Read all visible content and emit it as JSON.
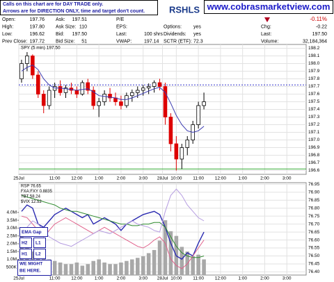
{
  "header": {
    "notice": [
      "Calls on this chart are for DAY TRADE only.",
      "Arrows are for DIRECTION ONLY, time and target don't count."
    ],
    "symbol": "RSHLS",
    "site": "www.cobrasmarketview.com",
    "change_pct": "-0.11%",
    "rows": [
      [
        [
          "Open:",
          "197.76"
        ],
        [
          "Ask:",
          "197.51"
        ],
        [
          "P/E"
        ]
      ],
      [
        [
          "High:",
          "197.80"
        ],
        [
          "Ask Size:",
          "110"
        ],
        [
          "EPS:"
        ],
        [
          "Options:",
          "yes"
        ]
      ],
      [
        [
          "Low:",
          "196.62"
        ],
        [
          "Bid:",
          "197.50"
        ],
        [
          "Last:",
          "100 shrs"
        ],
        [
          "Dividends:",
          "yes"
        ]
      ],
      [
        [
          "Prev Close:",
          "197.72"
        ],
        [
          "Bid Size:",
          "51"
        ],
        [
          "VWAP:",
          "197.14"
        ],
        [
          "SCTR (ETF):",
          "72.3"
        ]
      ]
    ],
    "stats": [
      [
        "Chg:",
        "-0.22"
      ],
      [
        "Last:",
        "197.50"
      ],
      [
        "Volume:",
        "32,184,364"
      ]
    ]
  },
  "chart_data": [
    {
      "type": "candlestick",
      "legend": "SPY (5 min) 197.50",
      "x": [
        0,
        1,
        2,
        3,
        4,
        5,
        6,
        7,
        8,
        9,
        10,
        11,
        12,
        13,
        14,
        15,
        16,
        17,
        18,
        19,
        20,
        21,
        22,
        23,
        24,
        25,
        26,
        27,
        28,
        29,
        30,
        31,
        32,
        33
      ],
      "open": [
        197.8,
        198.0,
        198.1,
        197.85,
        197.6,
        197.45,
        197.65,
        197.7,
        197.62,
        197.68,
        197.65,
        197.6,
        197.75,
        197.65,
        197.45,
        197.5,
        197.6,
        197.55,
        197.5,
        197.45,
        197.58,
        197.62,
        197.65,
        197.68,
        197.7,
        197.75,
        197.7,
        197.3,
        196.95,
        196.75,
        196.9,
        197.0,
        197.2,
        197.45
      ],
      "high": [
        198.05,
        198.15,
        198.12,
        197.9,
        197.65,
        197.7,
        197.75,
        197.78,
        197.72,
        197.75,
        197.7,
        197.78,
        197.8,
        197.7,
        197.55,
        197.65,
        197.68,
        197.62,
        197.58,
        197.62,
        197.66,
        197.7,
        197.72,
        197.74,
        197.78,
        197.8,
        197.75,
        197.35,
        197.05,
        196.95,
        197.05,
        197.25,
        197.5,
        197.62
      ],
      "low": [
        197.75,
        197.9,
        197.8,
        197.55,
        197.35,
        197.4,
        197.55,
        197.58,
        197.55,
        197.6,
        197.55,
        197.58,
        197.6,
        197.4,
        197.3,
        197.45,
        197.5,
        197.45,
        197.4,
        197.42,
        197.5,
        197.55,
        197.58,
        197.6,
        197.62,
        197.65,
        197.2,
        196.85,
        196.6,
        196.62,
        196.8,
        196.95,
        197.15,
        197.4
      ],
      "close": [
        198.0,
        198.1,
        197.85,
        197.6,
        197.45,
        197.65,
        197.7,
        197.62,
        197.68,
        197.65,
        197.6,
        197.75,
        197.65,
        197.45,
        197.5,
        197.6,
        197.55,
        197.5,
        197.45,
        197.58,
        197.62,
        197.65,
        197.68,
        197.7,
        197.75,
        197.7,
        197.3,
        196.95,
        196.75,
        196.9,
        197.0,
        197.2,
        197.45,
        197.5
      ],
      "up_color": "#000000",
      "down_color": "#dd0000",
      "ma": {
        "color": "#3a3ab0",
        "values": [
          197.9,
          197.95,
          197.98,
          197.92,
          197.8,
          197.72,
          197.68,
          197.68,
          197.67,
          197.66,
          197.65,
          197.66,
          197.67,
          197.63,
          197.58,
          197.57,
          197.56,
          197.55,
          197.53,
          197.53,
          197.55,
          197.58,
          197.61,
          197.64,
          197.67,
          197.69,
          197.62,
          197.48,
          197.32,
          197.2,
          197.12,
          197.1,
          197.12,
          197.18
        ]
      },
      "ref_lines": [
        {
          "value": 197.72,
          "color": "#3333cc",
          "dash": true
        },
        {
          "value": 196.62,
          "color": "#33aa33",
          "dash": false
        }
      ],
      "xlim": [
        -0.5,
        51.5
      ],
      "xticks": [
        {
          "value": -0.5,
          "label": "25Jul"
        },
        {
          "value": 6,
          "label": "11:00"
        },
        {
          "value": 10,
          "label": "12:00"
        },
        {
          "value": 14,
          "label": "1:00"
        },
        {
          "value": 18,
          "label": "2:00"
        },
        {
          "value": 22,
          "label": "3:00"
        },
        {
          "value": 25.5,
          "label": "28Jul"
        },
        {
          "value": 28,
          "label": "10:00"
        },
        {
          "value": 32,
          "label": "11:00"
        },
        {
          "value": 36,
          "label": "12:00"
        },
        {
          "value": 40,
          "label": "1:00"
        },
        {
          "value": 44,
          "label": "2:00"
        },
        {
          "value": 48,
          "label": "3:00"
        }
      ],
      "ylim": [
        196.55,
        198.25
      ],
      "yticks": [
        196.6,
        196.7,
        196.8,
        196.9,
        {
          "value": 197,
          "label": "197.0"
        },
        197.1,
        197.2,
        197.3,
        197.4,
        197.5,
        197.6,
        197.7,
        197.8,
        197.9,
        {
          "value": 198,
          "label": "198.0"
        },
        198.1,
        198.2
      ],
      "grid": true
    },
    {
      "type": "line",
      "x": [
        0,
        1,
        2,
        3,
        4,
        5,
        6,
        7,
        8,
        9,
        10,
        11,
        12,
        13,
        14,
        15,
        16,
        17,
        18,
        19,
        20,
        21,
        22,
        23,
        24,
        25,
        26,
        27,
        28,
        29,
        30,
        31,
        32,
        33
      ],
      "series": [
        {
          "name": "RSP 76.65",
          "color": "#2a2ab0",
          "axis": "y2",
          "values": [
            76.78,
            76.82,
            76.8,
            76.7,
            76.68,
            76.72,
            76.76,
            76.78,
            76.8,
            76.78,
            76.76,
            76.74,
            76.76,
            76.7,
            76.72,
            76.74,
            76.72,
            76.7,
            76.66,
            76.7,
            76.72,
            76.74,
            76.76,
            76.77,
            76.78,
            76.76,
            76.68,
            76.58,
            76.5,
            76.48,
            76.52,
            76.5,
            76.58,
            76.65
          ]
        },
        {
          "name": "FXA:FXY 0.8835",
          "color": "#2e8b2e",
          "axis": "y2",
          "values": [
            76.88,
            76.87,
            76.86,
            76.85,
            76.84,
            76.83,
            76.82,
            76.8,
            76.79,
            76.78,
            76.78,
            76.77,
            76.76,
            76.75,
            76.74,
            76.73,
            76.72,
            76.71,
            76.7,
            76.7,
            76.69,
            76.69,
            76.7,
            76.7,
            76.71,
            76.71,
            76.68,
            76.62,
            76.56,
            76.52,
            76.5,
            76.49,
            76.49,
            76.5
          ]
        },
        {
          "name": "TBT 58.24",
          "color": "#e0608a",
          "axis": "y2",
          "values": [
            76.75,
            76.74,
            76.7,
            76.66,
            76.62,
            76.66,
            76.7,
            76.72,
            76.74,
            76.72,
            76.7,
            76.68,
            76.66,
            76.64,
            76.66,
            76.68,
            76.66,
            76.64,
            76.62,
            76.6,
            76.58,
            76.56,
            76.55,
            76.57,
            76.6,
            76.62,
            76.58,
            76.48,
            76.44,
            76.42,
            76.45,
            76.5,
            76.55,
            76.6
          ]
        },
        {
          "name": "$VIX 12.52",
          "color": "#b59ce0",
          "axis": "y2",
          "values": [
            76.65,
            76.68,
            76.72,
            76.7,
            76.66,
            76.62,
            76.6,
            76.58,
            76.57,
            76.56,
            76.58,
            76.6,
            76.62,
            76.64,
            76.66,
            76.65,
            76.64,
            76.66,
            76.68,
            76.7,
            76.72,
            76.7,
            76.69,
            76.68,
            76.66,
            76.65,
            76.78,
            76.88,
            76.92,
            76.88,
            76.82,
            76.78,
            76.74,
            76.72
          ]
        }
      ],
      "volume": {
        "color": "#a8a8a8",
        "values": [
          3000000,
          1800000,
          1500000,
          1300000,
          1400000,
          1000000,
          900000,
          800000,
          700000,
          700000,
          800000,
          600000,
          700000,
          900000,
          1000000,
          800000,
          700000,
          700000,
          800000,
          900000,
          1000000,
          1100000,
          1200000,
          1400000,
          1600000,
          2200000,
          3500000,
          2800000,
          2500000,
          1800000,
          1500000,
          1200000,
          1300000,
          1000000
        ]
      },
      "annotations": [
        "EMA Gap",
        "H2",
        "L1",
        "H1",
        "L2",
        "WE MIGHT",
        "BE HERE."
      ],
      "xlim": [
        -0.5,
        51.5
      ],
      "xticks": [
        {
          "value": -0.5,
          "label": "25Jul"
        },
        {
          "value": 6,
          "label": "11:00"
        },
        {
          "value": 10,
          "label": "12:00"
        },
        {
          "value": 14,
          "label": "1:00"
        },
        {
          "value": 18,
          "label": "2:00"
        },
        {
          "value": 22,
          "label": "3:00"
        },
        {
          "value": 25.5,
          "label": "28Jul"
        },
        {
          "value": 28,
          "label": "10:00"
        },
        {
          "value": 32,
          "label": "11:00"
        },
        {
          "value": 36,
          "label": "12:00"
        },
        {
          "value": 40,
          "label": "1:00"
        },
        {
          "value": 44,
          "label": "2:00"
        },
        {
          "value": 48,
          "label": "3:00"
        }
      ],
      "ylim": [
        0,
        5900000
      ],
      "yticks": [
        {
          "value": 500000,
          "label": "500K"
        },
        {
          "value": 1000000,
          "label": "1.0M"
        },
        {
          "value": 1500000,
          "label": "1.5M"
        },
        {
          "value": 2000000,
          "label": "2.0M"
        },
        {
          "value": 2500000,
          "label": "2.5M"
        },
        {
          "value": 3000000,
          "label": "3.0M"
        },
        {
          "value": 3500000,
          "label": "3.5M"
        },
        {
          "value": 4000000,
          "label": "4.0M"
        }
      ],
      "y2lim": [
        76.38,
        76.96
      ],
      "y2ticks": [
        {
          "value": 76.4,
          "label": "76.40"
        },
        76.45,
        {
          "value": 76.5,
          "label": "76.50"
        },
        76.55,
        {
          "value": 76.6,
          "label": "76.60"
        },
        76.65,
        {
          "value": 76.7,
          "label": "76.70"
        },
        76.75,
        {
          "value": 76.8,
          "label": "76.80"
        },
        76.85,
        {
          "value": 76.9,
          "label": "76.90"
        },
        76.95
      ],
      "grid": true
    }
  ]
}
